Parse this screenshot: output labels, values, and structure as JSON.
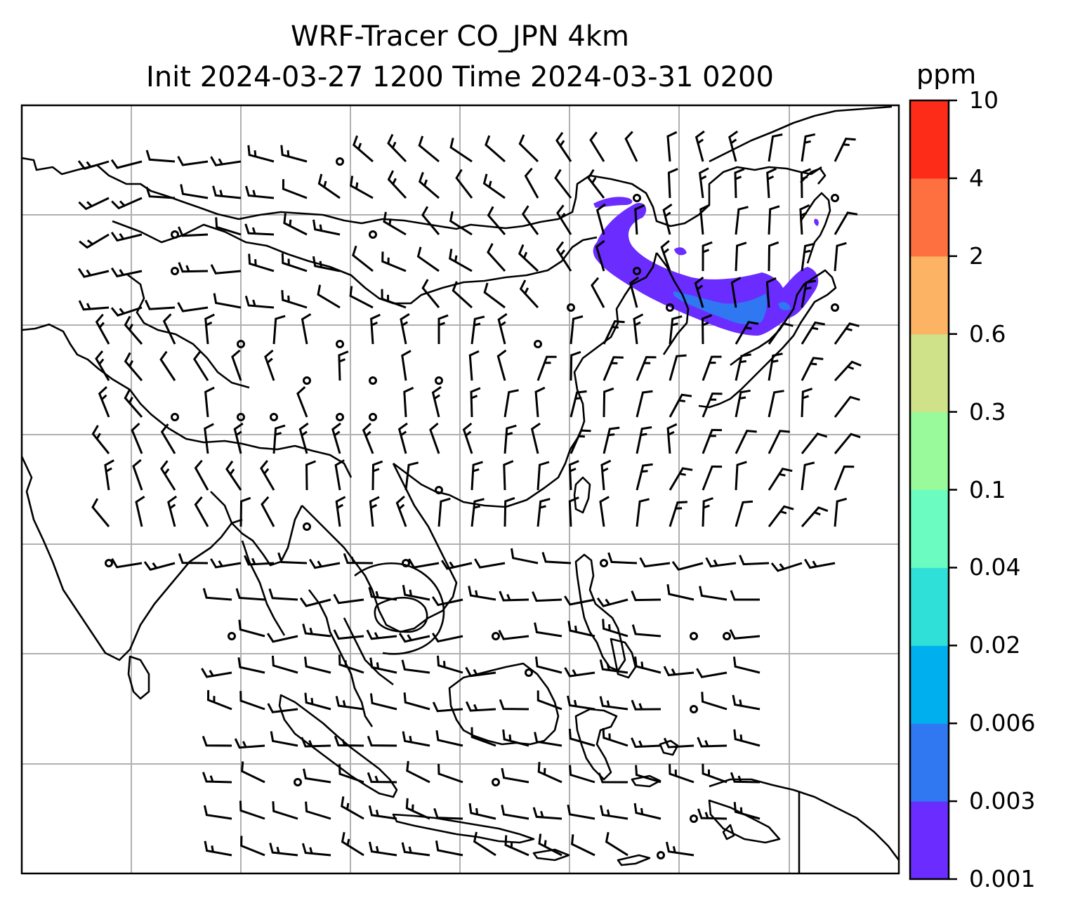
{
  "title": {
    "line1": "WRF-Tracer CO_JPN 4km",
    "line2": "Init 2024-03-27 1200 Time 2024-03-31 0200"
  },
  "colorbar": {
    "unit": "ppm",
    "ticks": [
      "0.001",
      "0.003",
      "0.006",
      "0.02",
      "0.04",
      "0.1",
      "0.3",
      "0.6",
      "2",
      "4",
      "10"
    ],
    "colors": [
      "#6a2cff",
      "#3077f2",
      "#00b0ee",
      "#2fe0d8",
      "#6afcc0",
      "#98fa9a",
      "#cfe28a",
      "#fcb464",
      "#ff7040",
      "#fc2c18"
    ]
  },
  "map": {
    "gridlines": true,
    "plume_color_low": "#6a2cff",
    "plume_color_mid": "#3077f2",
    "coast_color": "#000000",
    "grid_color": "#b0b0b0"
  }
}
